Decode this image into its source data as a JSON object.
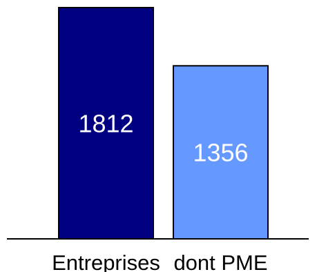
{
  "chart_data": {
    "type": "bar",
    "categories": [
      "Entreprises",
      "dont PME"
    ],
    "values": [
      1812,
      1356
    ],
    "data_labels": [
      "1812",
      "1356"
    ],
    "colors": [
      "#000080",
      "#6699ff"
    ],
    "bar_border_color": "#000000",
    "axis_color": "#000000",
    "ylim": [
      0,
      1812
    ],
    "grid": false,
    "title": "",
    "xlabel": "",
    "ylabel": ""
  }
}
